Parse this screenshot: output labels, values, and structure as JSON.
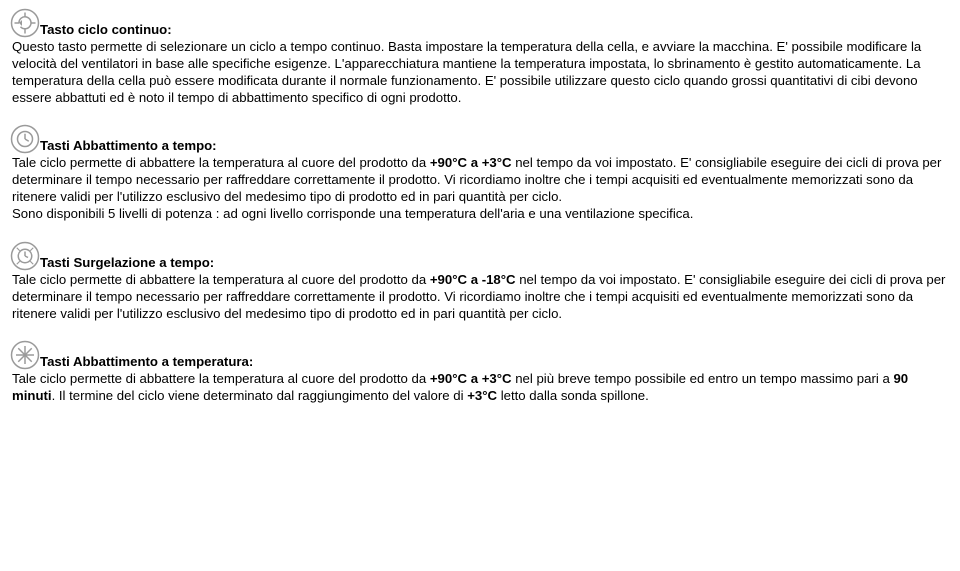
{
  "sections": [
    {
      "icon": "cycle",
      "heading": "Tasto ciclo continuo:",
      "body_html": "Questo tasto permette di selezionare un ciclo a tempo continuo. Basta impostare la temperatura della cella, e avviare la macchina. E' possibile modificare la velocità del ventilatori in base alle specifiche esigenze. L'apparecchiatura mantiene la temperatura impostata, lo sbrinamento è gestito automaticamente. La temperatura della cella può essere modificata durante il normale funzionamento. E' possibile utilizzare questo ciclo quando grossi quantitativi di cibi devono essere abbattuti ed è noto il tempo di abbattimento specifico di ogni prodotto."
    },
    {
      "icon": "timer",
      "heading": "Tasti Abbattimento a tempo:",
      "body_html": "Tale ciclo permette di abbattere la temperatura al cuore del prodotto da <b>+90°C a +3°C</b> nel tempo da voi impostato. E' consigliabile eseguire dei cicli di prova per determinare il tempo necessario per raffreddare correttamente il prodotto. Vi ricordiamo inoltre che i tempi acquisiti ed eventualmente memorizzati sono da ritenere validi per l'utilizzo esclusivo del medesimo tipo di prodotto ed in pari quantità per ciclo.\nSono disponibili 5 livelli di potenza : ad ogni livello corrisponde una temperatura dell'aria e una ventilazione specifica."
    },
    {
      "icon": "freeze-timer",
      "heading": "Tasti Surgelazione a tempo:",
      "body_html": "Tale ciclo permette di abbattere la temperatura al cuore del prodotto da <b>+90°C a -18°C</b> nel tempo da voi impostato. E' consigliabile eseguire dei cicli di prova per determinare il tempo necessario per raffreddare correttamente il prodotto. Vi ricordiamo inoltre che i tempi acquisiti ed eventualmente memorizzati sono da ritenere validi per l'utilizzo esclusivo del medesimo tipo di prodotto ed in pari quantità per ciclo."
    },
    {
      "icon": "snow-timer",
      "heading": "Tasti Abbattimento a temperatura:",
      "body_html": "Tale ciclo permette di abbattere la temperatura al cuore del prodotto da <b>+90°C a +3°C</b> nel più breve tempo possibile ed entro un tempo massimo pari a <b>90 minuti</b>. Il termine del ciclo viene determinato dal raggiungimento del valore di <b>+3°C</b> letto dalla sonda spillone."
    }
  ],
  "icon_color": "#9a9a9a"
}
